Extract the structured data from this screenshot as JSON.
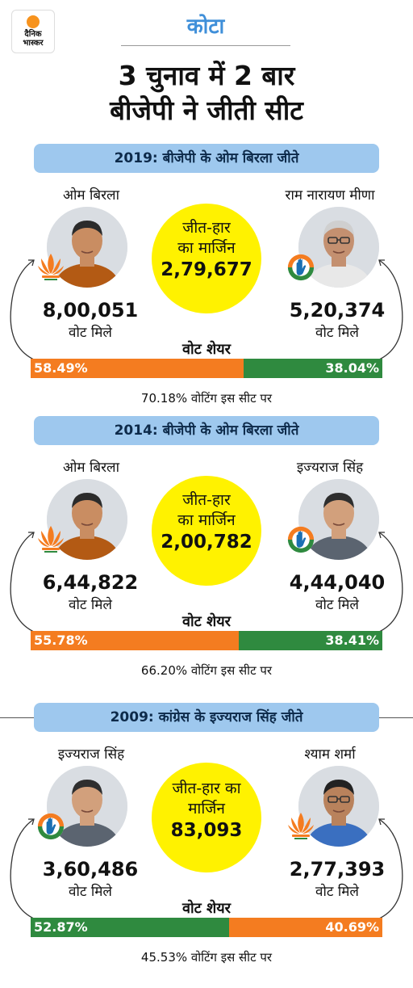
{
  "brand": {
    "logo_text_line1": "दैनिक",
    "logo_text_line2": "भास्कर"
  },
  "header": {
    "city": "कोटा",
    "headline_line1": "3 चुनाव में 2 बार",
    "headline_line2": "बीजेपी ने जीती सीट"
  },
  "colors": {
    "bjp": "#f47c20",
    "congress": "#2f8a3f",
    "banner": "#9ec8ee",
    "margin": "#fff200",
    "title": "#3f8fd9"
  },
  "elections": [
    {
      "banner": "2019: बीजेपी के ओम बिरला जीते",
      "left": {
        "name": "ओम बिरला",
        "party_icon": "lotus-icon",
        "votes": "8,00,051",
        "votes_label": "वोट मिले",
        "share": "58.49%",
        "share_pct": 58.49,
        "color": "#f47c20"
      },
      "right": {
        "name": "राम नारायण मीणा",
        "party_icon": "hand-icon",
        "votes": "5,20,374",
        "votes_label": "वोट मिले",
        "share": "38.04%",
        "share_pct": 38.04,
        "color": "#2f8a3f"
      },
      "margin_line1": "जीत-हार",
      "margin_line2": "का मार्जिन",
      "margin_value": "2,79,677",
      "share_title": "वोट शेयर",
      "turnout": "70.18% वोटिंग इस सीट पर"
    },
    {
      "banner": "2014: बीजेपी के ओम बिरला जीते",
      "left": {
        "name": "ओम बिरला",
        "party_icon": "lotus-icon",
        "votes": "6,44,822",
        "votes_label": "वोट मिले",
        "share": "55.78%",
        "share_pct": 55.78,
        "color": "#f47c20"
      },
      "right": {
        "name": "इज्यराज सिंह",
        "party_icon": "hand-icon",
        "votes": "4,44,040",
        "votes_label": "वोट मिले",
        "share": "38.41%",
        "share_pct": 38.41,
        "color": "#2f8a3f"
      },
      "margin_line1": "जीत-हार",
      "margin_line2": "का मार्जिन",
      "margin_value": "2,00,782",
      "share_title": "वोट शेयर",
      "turnout": "66.20% वोटिंग इस सीट पर"
    },
    {
      "banner": "2009: कांग्रेस के इज्यराज सिंह जीते",
      "left": {
        "name": "इज्यराज सिंह",
        "party_icon": "hand-icon",
        "votes": "3,60,486",
        "votes_label": "वोट मिले",
        "share": "52.87%",
        "share_pct": 52.87,
        "color": "#2f8a3f"
      },
      "right": {
        "name": "श्याम शर्मा",
        "party_icon": "lotus-icon",
        "votes": "2,77,393",
        "votes_label": "वोट मिले",
        "share": "40.69%",
        "share_pct": 40.69,
        "color": "#f47c20"
      },
      "margin_line1": "जीत-हार का",
      "margin_line2": "मार्जिन",
      "margin_value": "83,093",
      "share_title": "वोट शेयर",
      "turnout": "45.53% वोटिंग इस सीट पर"
    }
  ]
}
